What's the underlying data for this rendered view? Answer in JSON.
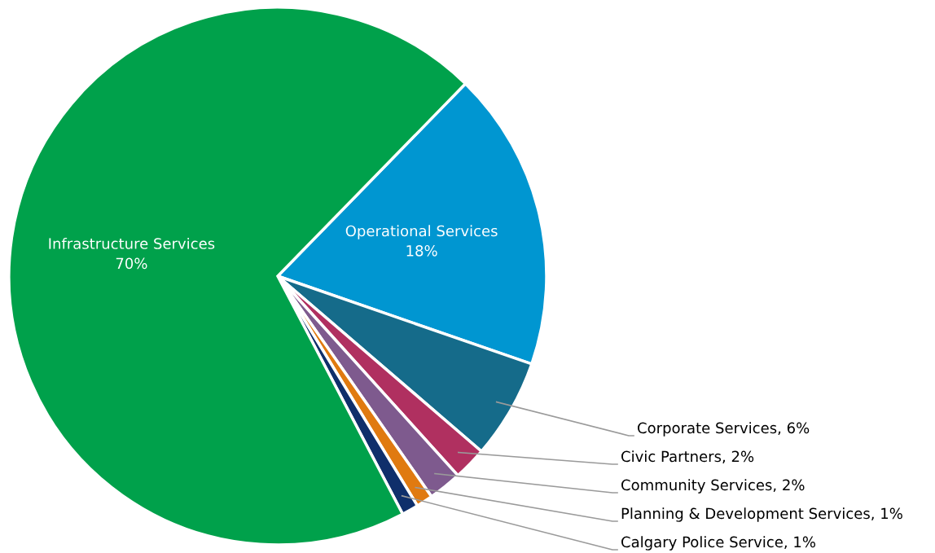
{
  "chart_data": {
    "type": "pie",
    "categories": [
      "Operational Services",
      "Corporate Services",
      "Civic Partners",
      "Community Services",
      "Planning & Development Services",
      "Calgary Police Service",
      "Infrastructure Services"
    ],
    "values": [
      18,
      6,
      2,
      2,
      1,
      1,
      70
    ],
    "value_labels": [
      "18%",
      "6%",
      "2%",
      "2%",
      "1%",
      "1%",
      "70%"
    ],
    "colors": [
      "#0096d1",
      "#156b8a",
      "#b03060",
      "#7e5a8e",
      "#e07a10",
      "#0f2f6b",
      "#00a14b"
    ]
  }
}
